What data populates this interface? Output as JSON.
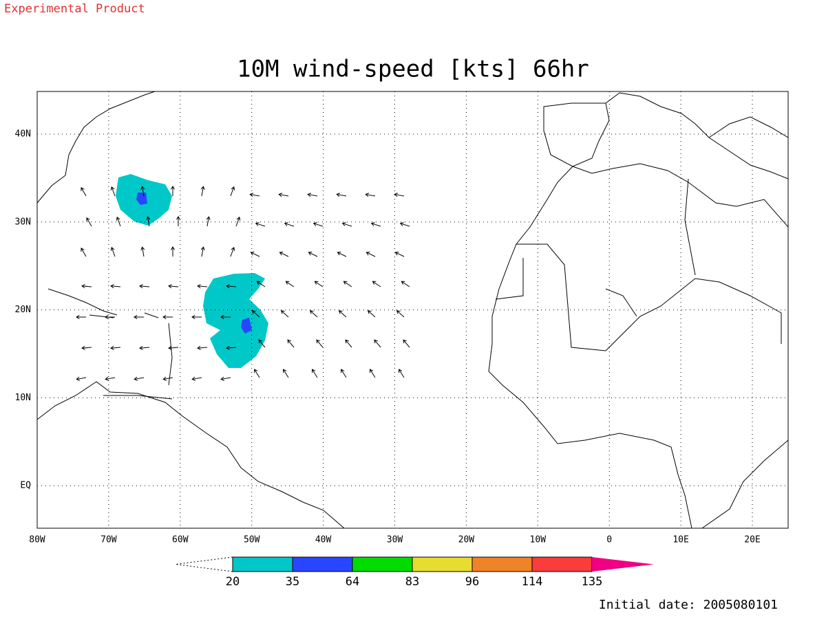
{
  "header": {
    "label": "Experimental Product"
  },
  "map": {
    "title": "10M wind-speed [kts] 66hr",
    "x_labels": [
      "80W",
      "70W",
      "60W",
      "50W",
      "40W",
      "30W",
      "20W",
      "10W",
      "0",
      "10E",
      "20E"
    ],
    "y_labels": [
      "40N",
      "30N",
      "20N",
      "10N",
      "EQ"
    ]
  },
  "colorbar": {
    "labels": [
      "20",
      "35",
      "64",
      "83",
      "96",
      "114",
      "135"
    ],
    "colors": [
      "#00c8c8",
      "#2846ff",
      "#00dc00",
      "#e6dc32",
      "#f08228",
      "#fa3c3c",
      "#f00082"
    ]
  },
  "footer": {
    "initial_date": "Initial date: 2005080101"
  }
}
